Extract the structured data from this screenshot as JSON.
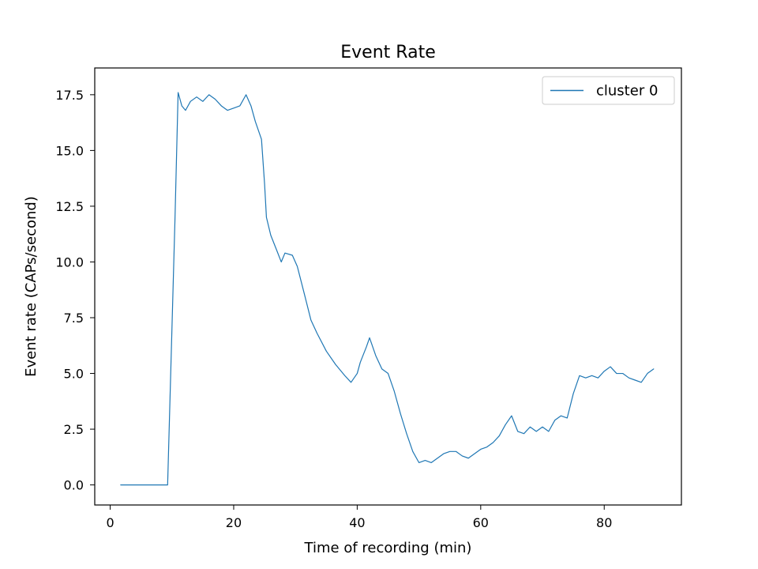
{
  "chart_data": {
    "type": "line",
    "title": "Event Rate",
    "xlabel": "Time of recording (min)",
    "ylabel": "Event rate (CAPs/second)",
    "xlim": [
      -2.5,
      92.5
    ],
    "ylim": [
      -0.9,
      18.7
    ],
    "xticks": [
      0,
      20,
      40,
      60,
      80
    ],
    "xtick_labels": [
      "0",
      "20",
      "40",
      "60",
      "80"
    ],
    "yticks": [
      0,
      2.5,
      5,
      7.5,
      10,
      12.5,
      15,
      17.5
    ],
    "ytick_labels": [
      "0.0",
      "2.5",
      "5.0",
      "7.5",
      "10.0",
      "12.5",
      "15.0",
      "17.5"
    ],
    "grid": false,
    "legend_position": "top-right",
    "colors": {
      "series": "#1f77b4",
      "axes": "#000000",
      "legend_border": "#cccccc"
    },
    "series": [
      {
        "name": "cluster 0",
        "x": [
          1.7,
          9.3,
          10.5,
          11.0,
          11.6,
          12.2,
          13.0,
          14.0,
          15.0,
          16.0,
          17.0,
          18.0,
          19.0,
          20.0,
          21.0,
          22.0,
          22.8,
          23.5,
          24.5,
          25.0,
          25.3,
          26.0,
          27.0,
          27.7,
          28.3,
          29.5,
          30.3,
          31.5,
          32.5,
          33.5,
          35.0,
          36.5,
          38.0,
          39.0,
          40.0,
          40.5,
          41.5,
          42.0,
          43.0,
          44.0,
          45.0,
          46.0,
          47.0,
          48.0,
          49.0,
          50.0,
          51.0,
          52.0,
          53.0,
          54.0,
          55.0,
          56.0,
          57.0,
          58.0,
          59.0,
          60.0,
          61.0,
          62.0,
          63.0,
          64.0,
          65.0,
          66.0,
          67.0,
          68.0,
          69.0,
          70.0,
          71.0,
          72.0,
          73.0,
          74.0,
          75.0,
          76.0,
          77.0,
          78.0,
          79.0,
          80.0,
          81.0,
          82.0,
          83.0,
          84.0,
          85.0,
          86.0,
          87.0,
          88.0
        ],
        "y": [
          0.0,
          0.0,
          12.0,
          17.6,
          17.0,
          16.8,
          17.2,
          17.4,
          17.2,
          17.5,
          17.3,
          17.0,
          16.8,
          16.9,
          17.0,
          17.5,
          17.0,
          16.3,
          15.5,
          13.5,
          12.0,
          11.2,
          10.5,
          10.0,
          10.4,
          10.3,
          9.8,
          8.5,
          7.4,
          6.8,
          6.0,
          5.4,
          4.9,
          4.6,
          5.0,
          5.5,
          6.2,
          6.6,
          5.8,
          5.2,
          5.0,
          4.2,
          3.2,
          2.3,
          1.5,
          1.0,
          1.1,
          1.0,
          1.2,
          1.4,
          1.5,
          1.5,
          1.3,
          1.2,
          1.4,
          1.6,
          1.7,
          1.9,
          2.2,
          2.7,
          3.1,
          2.4,
          2.3,
          2.6,
          2.4,
          2.6,
          2.4,
          2.9,
          3.1,
          3.0,
          4.1,
          4.9,
          4.8,
          4.9,
          4.8,
          5.1,
          5.3,
          5.0,
          5.0,
          4.8,
          4.7,
          4.6,
          5.0,
          5.2
        ]
      }
    ]
  }
}
